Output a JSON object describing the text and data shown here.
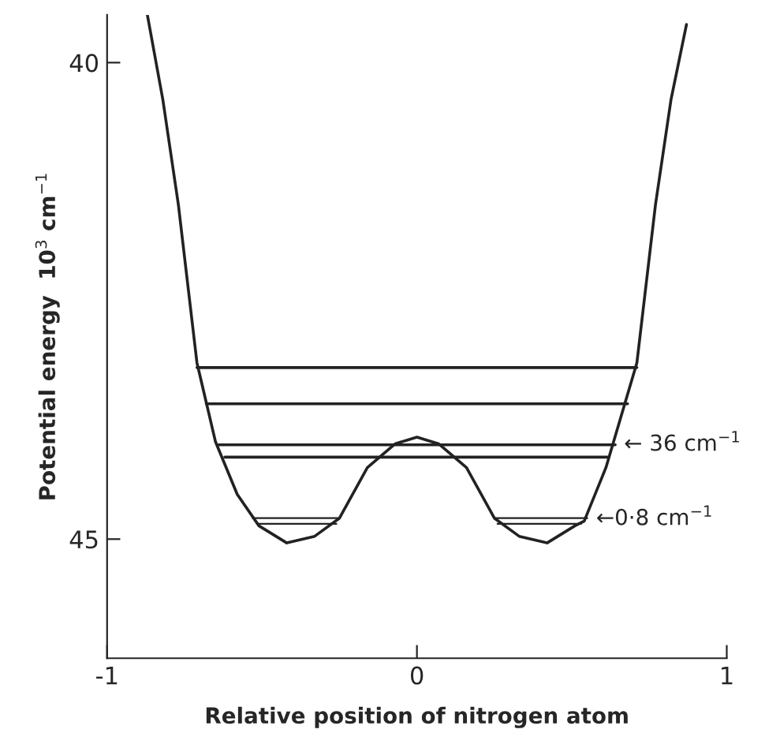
{
  "chart_data": {
    "type": "line",
    "xlabel": "Relative position of nitrogen atom",
    "ylabel": "Potential energy  10$^{3}$ cm$^{−1}$",
    "xlim": [
      -1,
      1
    ],
    "xticks": [
      -1,
      0,
      1
    ],
    "ylim": [
      46.25,
      39.5
    ],
    "yticks": [
      40,
      45
    ],
    "grid": false,
    "marker": "none",
    "line_style": "solid",
    "series": [
      {
        "color": "#222222",
        "x": [
          -0.87,
          -0.82,
          -0.77,
          -0.71,
          -0.65,
          -0.58,
          -0.51,
          -0.42,
          -0.33,
          -0.25,
          -0.16,
          -0.07,
          0,
          0.07,
          0.16,
          0.25,
          0.33,
          0.42,
          0.51,
          0.54,
          0.61,
          0.71,
          0.77,
          0.82,
          0.87
        ],
        "values": [
          39.5,
          40.39,
          41.49,
          43.15,
          43.98,
          44.53,
          44.86,
          45.04,
          44.97,
          44.78,
          44.25,
          44.0,
          43.93,
          44.0,
          44.25,
          44.78,
          44.97,
          45.04,
          44.86,
          44.81,
          44.25,
          43.15,
          41.49,
          40.39,
          39.6
        ]
      },
      {
        "color": "#222222",
        "x": [
          -0.71,
          0.71
        ],
        "values": [
          43.2,
          43.2
        ]
      },
      {
        "color": "#222222",
        "x": [
          -0.68,
          0.68
        ],
        "values": [
          43.58,
          43.58
        ]
      },
      {
        "color": "#222222",
        "x": [
          -0.64,
          0.64
        ],
        "values": [
          44.01,
          44.01
        ]
      },
      {
        "color": "#222222",
        "x": [
          -0.62,
          0.62
        ],
        "values": [
          44.14,
          44.14
        ]
      },
      {
        "color": "#222222",
        "x": [
          -0.53,
          -0.25,
          0,
          0.25,
          0.55
        ],
        "values": [
          44.78,
          44.78,
          null,
          44.78,
          44.78
        ]
      },
      {
        "color": "#222222",
        "x": [
          -0.51,
          -0.26,
          0,
          0.26,
          0.53
        ],
        "values": [
          44.84,
          44.84,
          null,
          44.84,
          44.84
        ]
      }
    ],
    "annotations": [
      {
        "text": "← 36 cm$^{−1}$",
        "x": 0.64,
        "y": 44.01
      },
      {
        "text": "←0·8 cm$^{−1}$",
        "x": 0.55,
        "y": 44.79
      }
    ]
  }
}
